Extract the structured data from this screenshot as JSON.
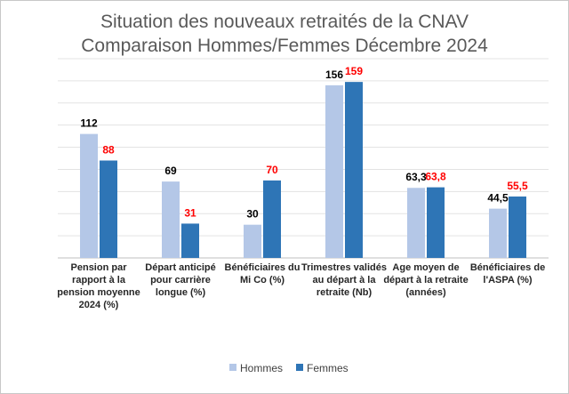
{
  "chart_data": {
    "type": "bar",
    "title": "Situation des nouveaux retraités de la CNAV",
    "subtitle": "Comparaison Hommes/Femmes Décembre 2024",
    "categories": [
      "Pension par rapport à la pension moyenne 2024 (%)",
      "Départ anticipé pour carrière longue (%)",
      "Bénéficiaires du Mi Co (%)",
      "Trimestres validés au départ à la retraite (Nb)",
      "Age moyen de départ à la retraite (années)",
      "Bénéficiaires de l'ASPA (%)"
    ],
    "category_lines": [
      [
        "Pension par",
        "rapport à la",
        "pension moyenne",
        "2024 (%)"
      ],
      [
        "Départ anticipé",
        "pour carrière",
        "longue (%)"
      ],
      [
        "Bénéficiaires du",
        "Mi Co (%)"
      ],
      [
        "Trimestres validés",
        "au départ à la",
        "retraite (Nb)"
      ],
      [
        "Age moyen de",
        "départ à la retraite",
        "(années)"
      ],
      [
        "Bénéficiaires de",
        "l'ASPA (%)"
      ]
    ],
    "series": [
      {
        "name": "Hommes",
        "color": "#b4c7e7",
        "label_color": "#000000",
        "values": [
          112,
          69,
          30,
          156,
          63.3,
          44.5
        ],
        "labels": [
          "112",
          "69",
          "30",
          "156",
          "63,3",
          "44,5"
        ]
      },
      {
        "name": "Femmes",
        "color": "#2e75b6",
        "label_color": "#ff0000",
        "values": [
          88,
          31,
          70,
          159,
          63.8,
          55.5
        ],
        "labels": [
          "88",
          "31",
          "70",
          "159",
          "63,8",
          "55,5"
        ]
      }
    ],
    "ylim": [
      0,
      180
    ],
    "gridlines": true,
    "y_tick_labels_shown": false,
    "legend_position": "bottom"
  }
}
